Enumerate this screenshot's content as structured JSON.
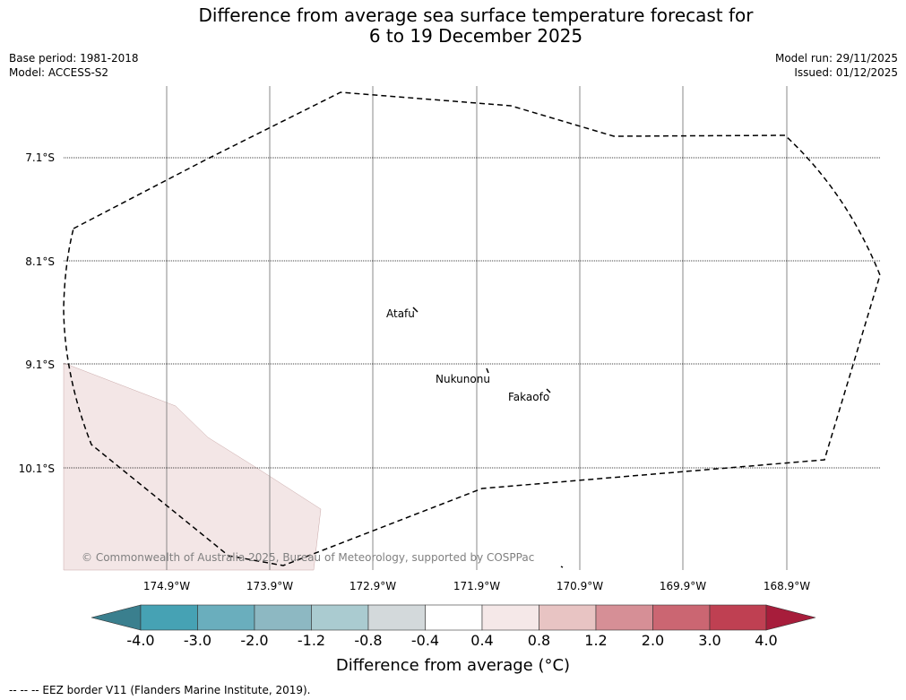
{
  "title_line1": "Difference from average sea surface temperature forecast for",
  "title_line2": "6 to 19 December 2025",
  "base_period": "Base period: 1981-2018",
  "model": "Model: ACCESS-S2",
  "model_run": "Model run: 29/11/2025",
  "issued": "Issued: 01/12/2025",
  "lat_labels": [
    "7.1°S",
    "8.1°S",
    "9.1°S",
    "10.1°S"
  ],
  "lon_labels": [
    "174.9°W",
    "173.9°W",
    "172.9°W",
    "171.9°W",
    "170.9°W",
    "169.9°W",
    "168.9°W"
  ],
  "places": [
    "Atafu",
    "Nukunonu",
    "Fakaofo"
  ],
  "copyright": "© Commonwealth of Australia 2025, Bureau of Meteorology, supported by COSPPac",
  "colorbar": {
    "ticks": [
      "-4.0",
      "-3.0",
      "-2.0",
      "-1.2",
      "-0.8",
      "-0.4",
      "0.4",
      "0.8",
      "1.2",
      "2.0",
      "3.0",
      "4.0"
    ],
    "colors": [
      "#3a7f8e",
      "#46a2b4",
      "#6aaebd",
      "#8db8c2",
      "#aacbd0",
      "#d3d9db",
      "#ffffff",
      "#f5e8e8",
      "#e8c4c3",
      "#d68f96",
      "#cb6672",
      "#bf4052",
      "#a71d3b"
    ],
    "label": "Difference from average (°C)"
  },
  "eez_legend": "--  --  -- EEZ border V11 (Flanders Marine Institute, 2019).",
  "anomaly_region_color": "#f3e6e6"
}
